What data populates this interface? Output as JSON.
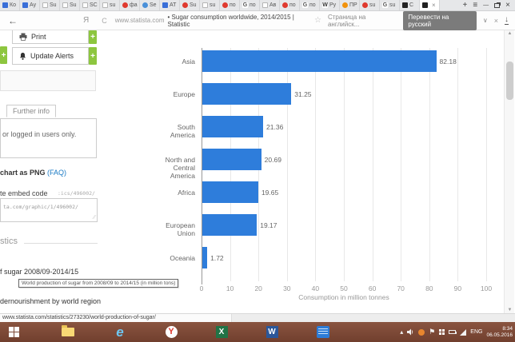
{
  "browser": {
    "tabs": [
      {
        "label": "Ко",
        "icon": "blue"
      },
      {
        "label": "Ау",
        "icon": "blue"
      },
      {
        "label": "Su",
        "icon": "doc"
      },
      {
        "label": "Su",
        "icon": "doc"
      },
      {
        "label": "SC",
        "icon": "doc"
      },
      {
        "label": "su",
        "icon": "doc"
      },
      {
        "label": "фа",
        "icon": "red"
      },
      {
        "label": "Se",
        "icon": "globe"
      },
      {
        "label": "АТ",
        "icon": "blue"
      },
      {
        "label": "Su",
        "icon": "red"
      },
      {
        "label": "su",
        "icon": "doc"
      },
      {
        "label": "по",
        "icon": "red"
      },
      {
        "label": "по",
        "icon": "google"
      },
      {
        "label": "Ав",
        "icon": "doc"
      },
      {
        "label": "по",
        "icon": "red"
      },
      {
        "label": "по",
        "icon": "google"
      },
      {
        "label": "Ру",
        "icon": "wiki"
      },
      {
        "label": "ПР",
        "icon": "orange"
      },
      {
        "label": "su",
        "icon": "red"
      },
      {
        "label": "su",
        "icon": "google"
      },
      {
        "label": "С",
        "icon": "dark"
      },
      {
        "label": "",
        "icon": "dark",
        "active": true
      }
    ],
    "strip_controls": {
      "new_tab": "+",
      "menu": "≡",
      "minimize": "—",
      "close": "×"
    },
    "address_bar": {
      "back_glyph": "←",
      "yandex_glyph": "Я",
      "reload_glyph": "C",
      "url_domain": "www.statista.com",
      "url_title": "• Sugar consumption worldwide, 2014/2015 | Statistic",
      "star_glyph": "☆",
      "translate_hint": "Страница на английск...",
      "translate_button": "Перевести на русский",
      "chevron_glyph": "∨",
      "close_glyph": "×",
      "download_glyph": "↓"
    }
  },
  "sidebar": {
    "print_label": "Print",
    "update_alerts_label": "Update Alerts",
    "plus_glyph": "+",
    "further_info_label": "Further info",
    "login_note": "or logged in users only.",
    "png_label": "chart as PNG ",
    "faq_label": "(FAQ)",
    "embed_label": "te embed code",
    "embed_inline_code": ":ics/496002/",
    "embed_box_code": "ta.com/graphic/1/496002/",
    "resize_glyph": "⁄⁄",
    "statistics_header": "stics",
    "link_sugar": "f sugar 2008/09-2014/15",
    "tooltip_text": "World production of sugar from 2008/09 to 2014/15 (in million tons)",
    "link_undernourishment": "dernourishment by world region"
  },
  "chart_data": {
    "type": "bar",
    "orientation": "horizontal",
    "title": "Sugar consumption worldwide, 2014/2015",
    "categories": [
      "Asia",
      "Europe",
      "South America",
      "North and Central America",
      "Africa",
      "European Union",
      "Oceania"
    ],
    "values": [
      82.18,
      31.25,
      21.36,
      20.69,
      19.65,
      19.17,
      1.72
    ],
    "value_labels": [
      "82.18",
      "31.25",
      "21.36",
      "20.69",
      "19.65",
      "19.17",
      "1.72"
    ],
    "xlabel": "Consumption in million tonnes",
    "xlim": [
      0,
      100
    ],
    "xticks": [
      0,
      10,
      20,
      30,
      40,
      50,
      60,
      70,
      80,
      90,
      100
    ],
    "bar_color": "#2e7ddb",
    "grid": true,
    "legend": false
  },
  "status_bar": {
    "url": "www.statista.com/statistics/273230/world-production-of-sugar/"
  },
  "taskbar": {
    "language": "ENG",
    "time": "8:34",
    "date": "06.05.2016"
  }
}
